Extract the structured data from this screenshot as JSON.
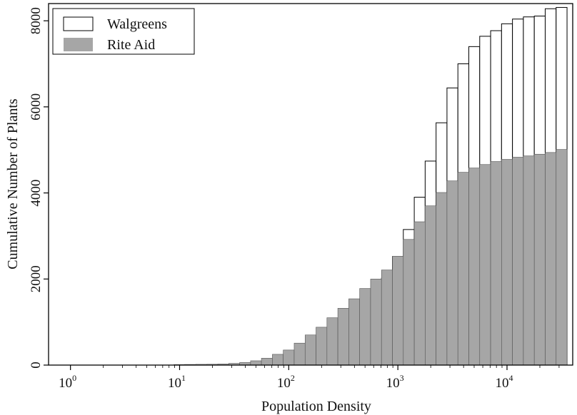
{
  "chart_data": {
    "type": "bar",
    "title": "",
    "xlabel": "Population Density",
    "ylabel": "Cumulative Number of Plants",
    "x_scale": "log",
    "xlim": [
      0.63,
      40000
    ],
    "ylim": [
      0,
      8400
    ],
    "y_ticks": [
      0,
      2000,
      4000,
      6000,
      8000
    ],
    "x_ticks": [
      {
        "value": 1,
        "base": "10",
        "exp": "0"
      },
      {
        "value": 10,
        "base": "10",
        "exp": "1"
      },
      {
        "value": 100,
        "base": "10",
        "exp": "2"
      },
      {
        "value": 1000,
        "base": "10",
        "exp": "3"
      },
      {
        "value": 10000,
        "base": "10",
        "exp": "4"
      }
    ],
    "legend_position": "top-left",
    "bin_edges_density": [
      8.9,
      11.1,
      14.1,
      17.8,
      22.4,
      28.2,
      35.5,
      44.7,
      56.2,
      70.8,
      89.1,
      112.2,
      141.3,
      177.8,
      223.9,
      281.8,
      354.8,
      446.7,
      562.3,
      707.9,
      891.3,
      1122,
      1413,
      1778,
      2239,
      2818,
      3548,
      4467,
      5623,
      7079,
      8913,
      11220,
      14125,
      17783,
      22387,
      28184,
      35481
    ],
    "series": [
      {
        "name": "Walgreens",
        "color": "#ffffff",
        "values": [
          5,
          5,
          5,
          5,
          5,
          5,
          5,
          5,
          10,
          20,
          40,
          70,
          120,
          220,
          380,
          600,
          870,
          1200,
          1560,
          2020,
          2520,
          3150,
          3900,
          4740,
          5630,
          6440,
          7000,
          7400,
          7640,
          7770,
          7930,
          8040,
          8090,
          8110,
          8280,
          8310
        ]
      },
      {
        "name": "Rite Aid",
        "color": "#a6a6a6",
        "values": [
          10,
          15,
          18,
          20,
          25,
          40,
          60,
          100,
          160,
          250,
          350,
          510,
          700,
          880,
          1100,
          1320,
          1540,
          1780,
          2000,
          2210,
          2530,
          2920,
          3330,
          3700,
          4010,
          4280,
          4480,
          4580,
          4660,
          4730,
          4780,
          4830,
          4860,
          4900,
          4940,
          5010
        ]
      }
    ]
  }
}
